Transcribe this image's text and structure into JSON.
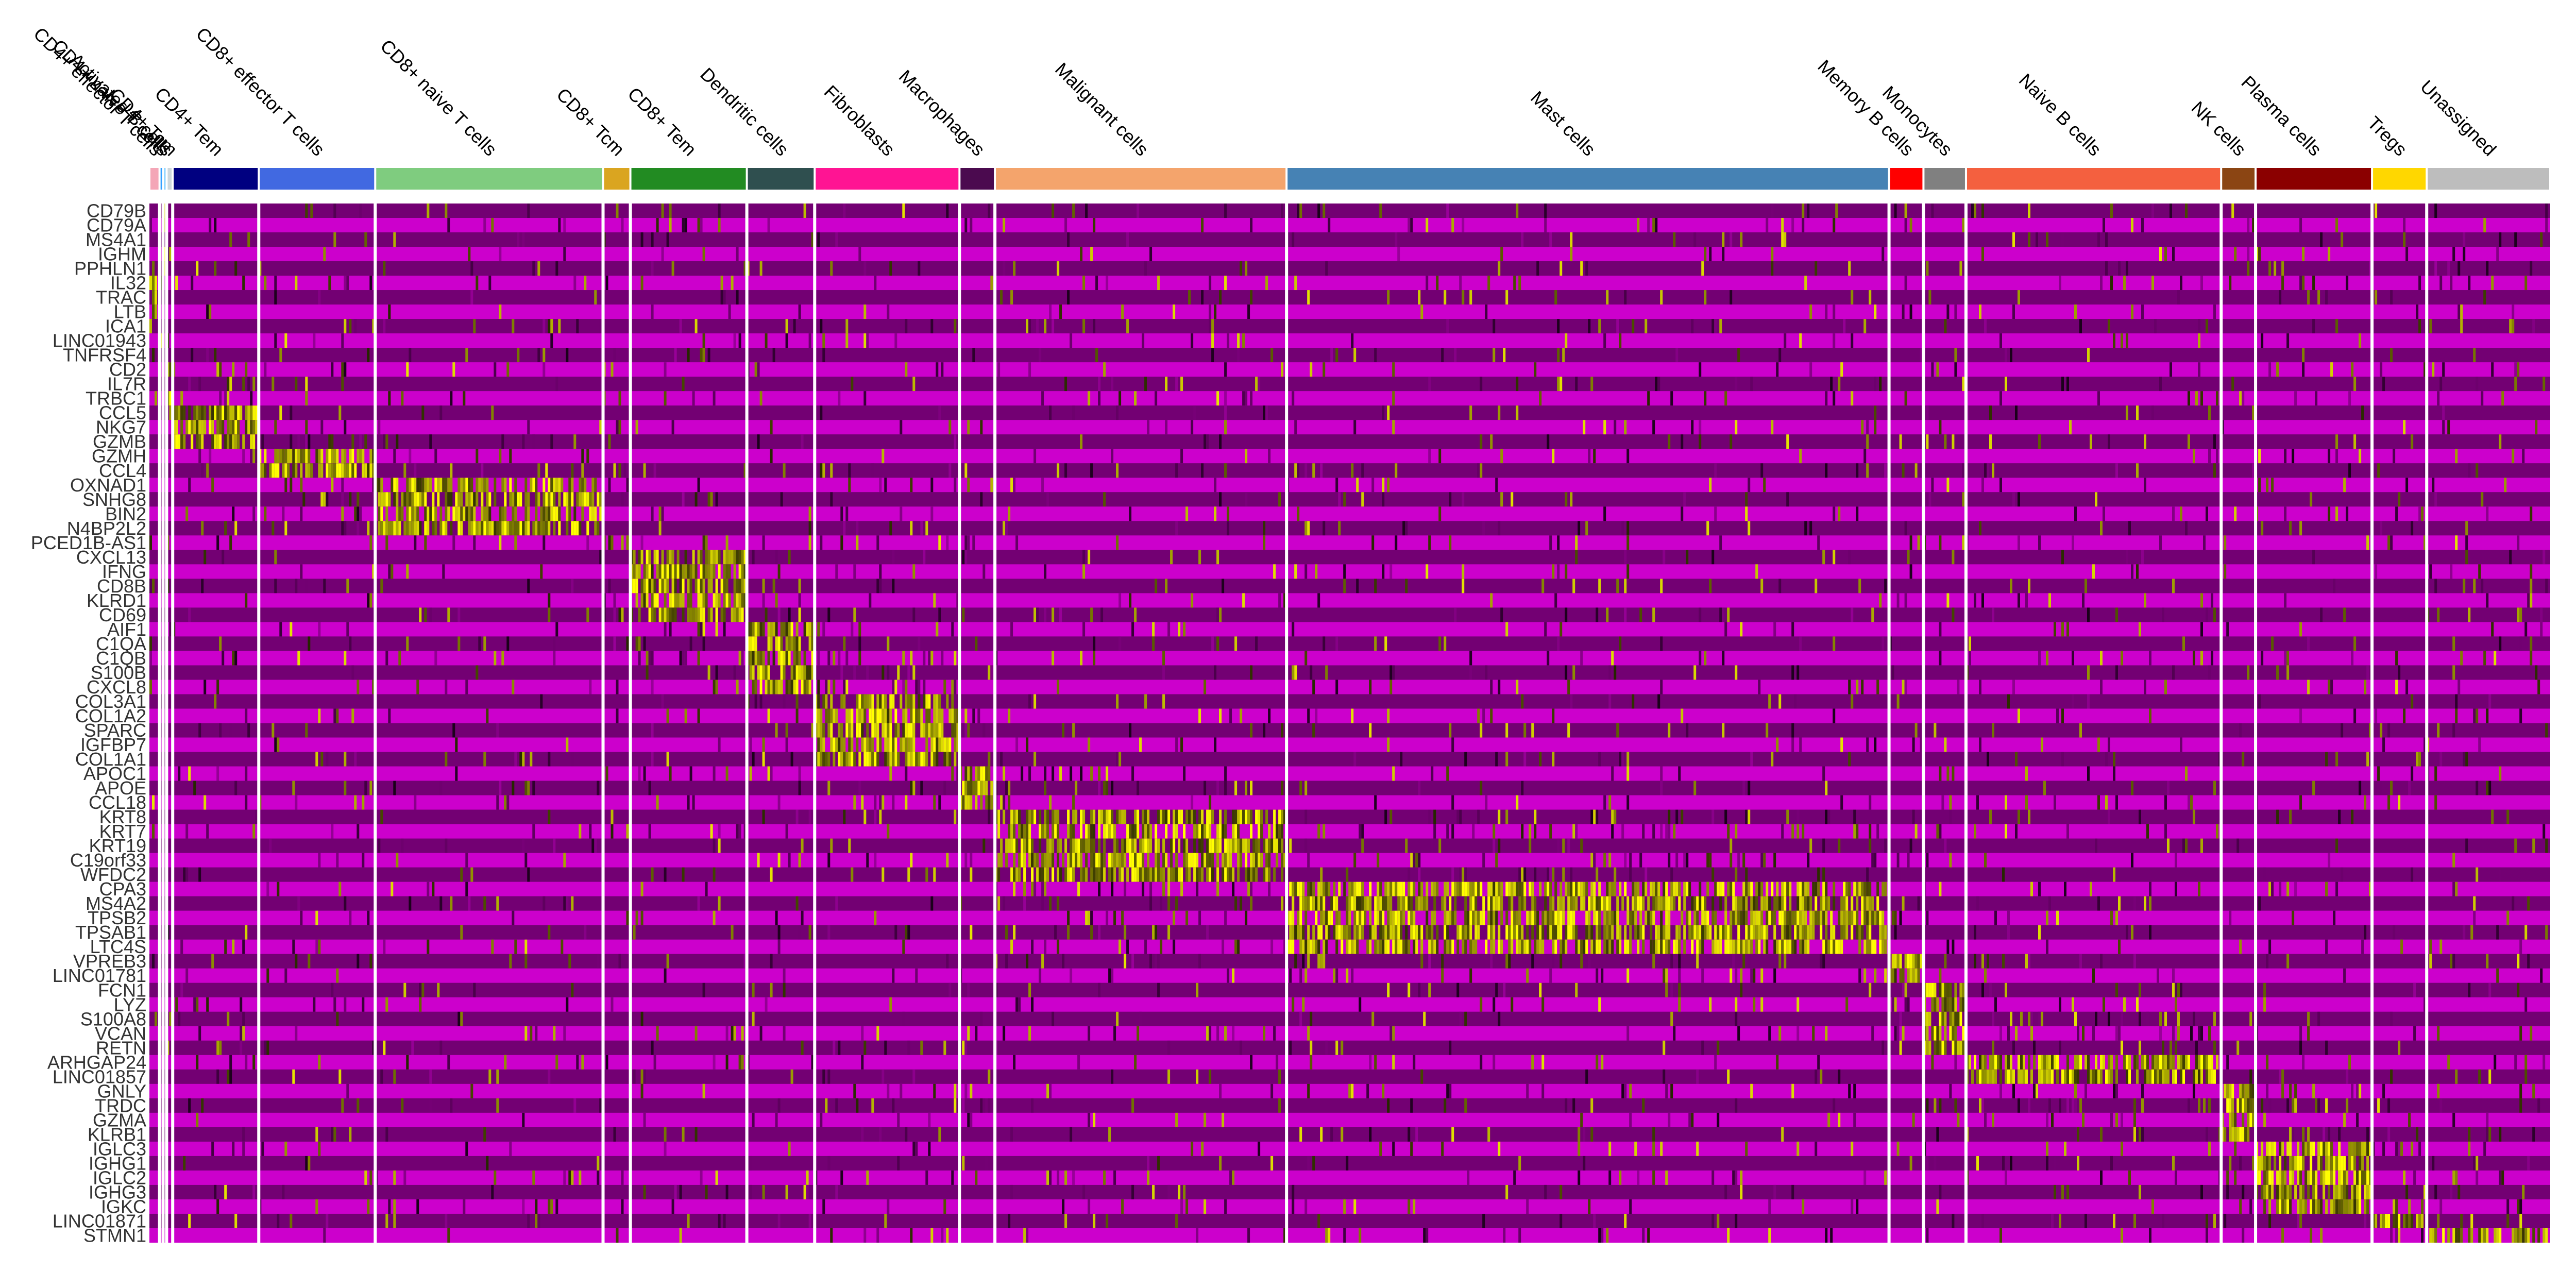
{
  "chart_data": {
    "type": "heatmap",
    "title": "",
    "xlabel": "",
    "ylabel": "",
    "colors": {
      "low": "#ff00ff",
      "mid": "#000000",
      "high": "#ffff00",
      "base": "#8b008b",
      "separator": "#ffffff"
    },
    "groups": [
      {
        "name": "CD4+ effector T cells",
        "weight": 1.0,
        "color": "#f4a6b7"
      },
      {
        "name": "CD4+ naive T cells",
        "weight": 0.35,
        "color": "#33a0ff"
      },
      {
        "name": "Activated B cells",
        "weight": 0.35,
        "color": "#8bd3ff"
      },
      {
        "name": "CD4+ Tcm",
        "weight": 0.6,
        "color": "#cfd8dc"
      },
      {
        "name": "CD4+ Tem",
        "weight": 8.5,
        "color": "#000080"
      },
      {
        "name": "CD8+ effector T cells",
        "weight": 11.5,
        "color": "#4169e1"
      },
      {
        "name": "CD8+ naive T cells",
        "weight": 22.5,
        "color": "#7fcc7f"
      },
      {
        "name": "CD8+ Tcm",
        "weight": 2.7,
        "color": "#daa520"
      },
      {
        "name": "CD8+ Tem",
        "weight": 11.5,
        "color": "#228b22"
      },
      {
        "name": "Dendritic cells",
        "weight": 6.7,
        "color": "#2f4f4f"
      },
      {
        "name": "Fibroblasts",
        "weight": 14.3,
        "color": "#ff1493"
      },
      {
        "name": "Macrophages",
        "weight": 3.5,
        "color": "#4b0a4f"
      },
      {
        "name": "Malignant cells",
        "weight": 28.8,
        "color": "#f4a46c"
      },
      {
        "name": "Mast cells",
        "weight": 59.5,
        "color": "#4682b4"
      },
      {
        "name": "Memory B cells",
        "weight": 3.4,
        "color": "#ff0000"
      },
      {
        "name": "Monocytes",
        "weight": 4.2,
        "color": "#808080"
      },
      {
        "name": "Naive B cells",
        "weight": 25.2,
        "color": "#f4603f"
      },
      {
        "name": "NK cells",
        "weight": 3.4,
        "color": "#8b4513"
      },
      {
        "name": "Plasma cells",
        "weight": 11.5,
        "color": "#8b0000"
      },
      {
        "name": "Tregs",
        "weight": 5.4,
        "color": "#ffd700"
      },
      {
        "name": "Unassigned",
        "weight": 12.2,
        "color": "#bdbdbd"
      }
    ],
    "genes": [
      {
        "name": "CD79B",
        "block": "Activated B cells"
      },
      {
        "name": "CD79A",
        "block": "Activated B cells"
      },
      {
        "name": "MS4A1",
        "block": "Activated B cells"
      },
      {
        "name": "IGHM",
        "block": "Activated B cells"
      },
      {
        "name": "PPHLN1",
        "block": "Activated B cells"
      },
      {
        "name": "IL32",
        "block": "CD4+ effector T cells"
      },
      {
        "name": "TRAC",
        "block": "CD4+ effector T cells"
      },
      {
        "name": "LTB",
        "block": "CD4+ effector T cells"
      },
      {
        "name": "ICA1",
        "block": "CD4+ naive T cells"
      },
      {
        "name": "LINC01943",
        "block": "CD4+ naive T cells"
      },
      {
        "name": "TNFRSF4",
        "block": "CD4+ naive T cells"
      },
      {
        "name": "CD2",
        "block": "CD4+ Tcm"
      },
      {
        "name": "IL7R",
        "block": "CD4+ Tcm"
      },
      {
        "name": "TRBC1",
        "block": "CD4+ Tcm"
      },
      {
        "name": "CCL5",
        "block": "CD4+ Tem"
      },
      {
        "name": "NKG7",
        "block": "CD4+ Tem"
      },
      {
        "name": "GZMB",
        "block": "CD4+ Tem"
      },
      {
        "name": "GZMH",
        "block": "CD8+ effector T cells"
      },
      {
        "name": "CCL4",
        "block": "CD8+ effector T cells"
      },
      {
        "name": "OXNAD1",
        "block": "CD8+ naive T cells"
      },
      {
        "name": "SNHG8",
        "block": "CD8+ naive T cells"
      },
      {
        "name": "BIN2",
        "block": "CD8+ naive T cells"
      },
      {
        "name": "N4BP2L2",
        "block": "CD8+ naive T cells"
      },
      {
        "name": "PCED1B-AS1",
        "block": "CD8+ Tcm"
      },
      {
        "name": "CXCL13",
        "block": "CD8+ Tem"
      },
      {
        "name": "IFNG",
        "block": "CD8+ Tem"
      },
      {
        "name": "CD8B",
        "block": "CD8+ Tem"
      },
      {
        "name": "KLRD1",
        "block": "CD8+ Tem"
      },
      {
        "name": "CD69",
        "block": "CD8+ Tem"
      },
      {
        "name": "AIF1",
        "block": "Dendritic cells"
      },
      {
        "name": "C1QA",
        "block": "Dendritic cells"
      },
      {
        "name": "C1QB",
        "block": "Dendritic cells"
      },
      {
        "name": "S100B",
        "block": "Dendritic cells"
      },
      {
        "name": "CXCL8",
        "block": "Dendritic cells"
      },
      {
        "name": "COL3A1",
        "block": "Fibroblasts"
      },
      {
        "name": "COL1A2",
        "block": "Fibroblasts"
      },
      {
        "name": "SPARC",
        "block": "Fibroblasts"
      },
      {
        "name": "IGFBP7",
        "block": "Fibroblasts"
      },
      {
        "name": "COL1A1",
        "block": "Fibroblasts"
      },
      {
        "name": "APOC1",
        "block": "Macrophages"
      },
      {
        "name": "APOE",
        "block": "Macrophages"
      },
      {
        "name": "CCL18",
        "block": "Macrophages"
      },
      {
        "name": "KRT8",
        "block": "Malignant cells"
      },
      {
        "name": "KRT7",
        "block": "Malignant cells"
      },
      {
        "name": "KRT19",
        "block": "Malignant cells"
      },
      {
        "name": "C19orf33",
        "block": "Malignant cells"
      },
      {
        "name": "WFDC2",
        "block": "Malignant cells"
      },
      {
        "name": "CPA3",
        "block": "Mast cells"
      },
      {
        "name": "MS4A2",
        "block": "Mast cells"
      },
      {
        "name": "TPSB2",
        "block": "Mast cells"
      },
      {
        "name": "TPSAB1",
        "block": "Mast cells"
      },
      {
        "name": "LTC4S",
        "block": "Mast cells"
      },
      {
        "name": "VPREB3",
        "block": "Memory B cells"
      },
      {
        "name": "LINC01781",
        "block": "Memory B cells"
      },
      {
        "name": "FCN1",
        "block": "Monocytes"
      },
      {
        "name": "LYZ",
        "block": "Monocytes"
      },
      {
        "name": "S100A8",
        "block": "Monocytes"
      },
      {
        "name": "VCAN",
        "block": "Monocytes"
      },
      {
        "name": "RETN",
        "block": "Monocytes"
      },
      {
        "name": "ARHGAP24",
        "block": "Naive B cells"
      },
      {
        "name": "LINC01857",
        "block": "Naive B cells"
      },
      {
        "name": "GNLY",
        "block": "NK cells"
      },
      {
        "name": "TRDC",
        "block": "NK cells"
      },
      {
        "name": "GZMA",
        "block": "NK cells"
      },
      {
        "name": "KLRB1",
        "block": "NK cells"
      },
      {
        "name": "IGLC3",
        "block": "Plasma cells"
      },
      {
        "name": "IGHG1",
        "block": "Plasma cells"
      },
      {
        "name": "IGLC2",
        "block": "Plasma cells"
      },
      {
        "name": "IGHG3",
        "block": "Plasma cells"
      },
      {
        "name": "IGKC",
        "block": "Plasma cells"
      },
      {
        "name": "LINC01871",
        "block": "Tregs"
      },
      {
        "name": "STMN1",
        "block": "Unassigned"
      }
    ]
  }
}
